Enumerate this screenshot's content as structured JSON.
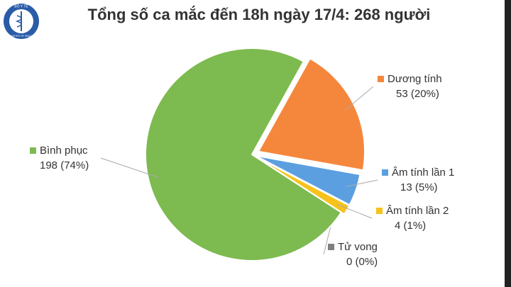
{
  "logo": {
    "top": "BỘ Y TẾ",
    "bottom": "MINISTRY OF HEALTH"
  },
  "chart_data": {
    "type": "pie",
    "title": "Tổng số ca mắc đến 18h ngày 17/4: 268 người",
    "categories": [
      "Dương tính",
      "Âm tính lần 1",
      "Âm tính lần 2",
      "Tử vong",
      "Bình phục"
    ],
    "values": [
      53,
      13,
      4,
      0,
      198
    ],
    "value_labels": [
      "53 (20%)",
      "13 (5%)",
      "4 (1%)",
      "0 (0%)",
      "198 (74%)"
    ],
    "colors": [
      "#f5873d",
      "#5b9fe0",
      "#f7c21b",
      "#7f7f7f",
      "#7dba4f"
    ]
  }
}
